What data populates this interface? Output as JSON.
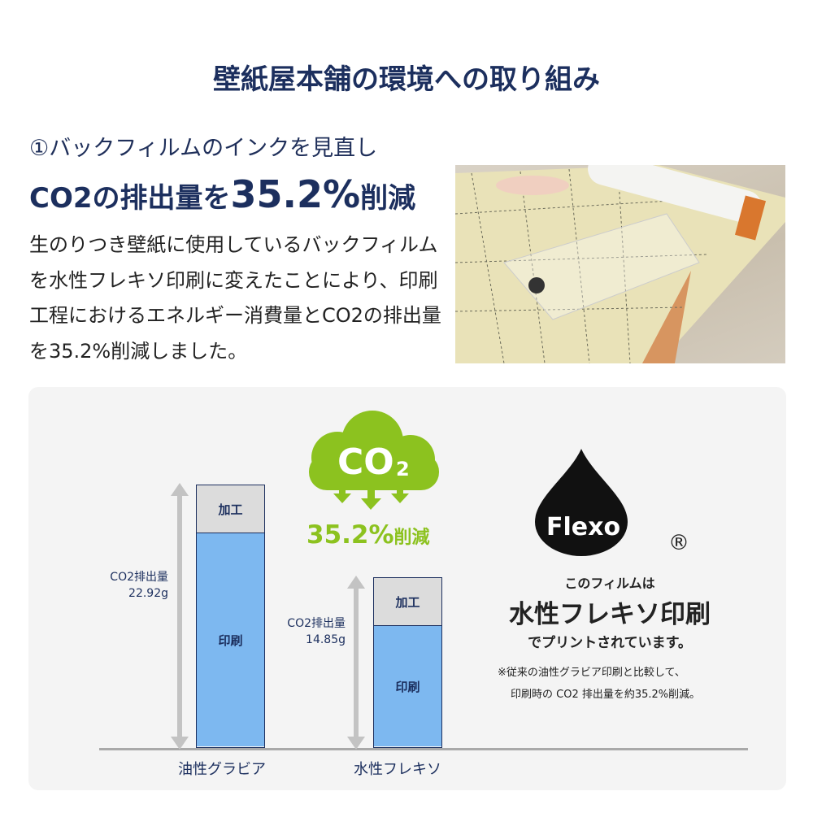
{
  "title": "壁紙屋本舗の環境への取り組み",
  "section": {
    "subheading": "①バックフィルムのインクを見直し",
    "headline_prefix": "CO2の排出量を",
    "headline_value": "35.2%",
    "headline_suffix": "削減",
    "body": "生のりつき壁紙に使用しているバックフィルムを水性フレキソ印刷に変えたことにより、印刷工程におけるエネルギー消費量とCO2の排出量を35.2%削減しました。"
  },
  "badge": {
    "cloud_text": "CO",
    "cloud_sub": "2",
    "reduction": "35.2%",
    "reduction_suffix": "削減",
    "color": "#8cc21f"
  },
  "flexo": {
    "logo_text": "Flexo",
    "registered": "®",
    "line1": "このフィルムは",
    "line2": "水性フレキソ印刷",
    "line3": "でプリントされています。",
    "note1": "※従来の油性グラビア印刷と比較して、",
    "note2": "印刷時の CO2 排出量を約35.2%削減。"
  },
  "chart_data": {
    "type": "bar",
    "stacked": true,
    "categories": [
      "油性グラビア",
      "水性フレキソ"
    ],
    "series": [
      {
        "name": "印刷",
        "values": [
          18.7,
          10.6
        ],
        "color": "#7db8f0"
      },
      {
        "name": "加工",
        "values": [
          4.22,
          4.25
        ],
        "color": "#dcdcdc"
      }
    ],
    "totals": [
      22.92,
      14.85
    ],
    "total_label_prefix": "CO2排出量",
    "total_labels": [
      "22.92g",
      "14.85g"
    ],
    "ylim": [
      0,
      22.92
    ]
  }
}
